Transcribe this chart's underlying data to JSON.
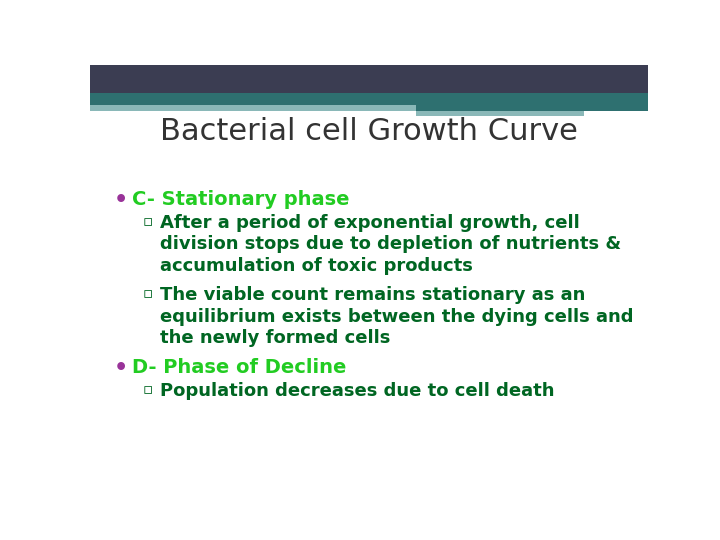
{
  "title": "Bacterial cell Growth Curve",
  "title_color": "#333333",
  "title_fontsize": 22,
  "title_fontweight": "normal",
  "background_color": "#ffffff",
  "header_navy_color": "#3b3d52",
  "header_teal_color": "#2e7070",
  "header_light_teal_color": "#8ab8b8",
  "bullet_dot_color": "#993399",
  "bullet_main_color": "#22cc22",
  "sub_bullet_color": "#006622",
  "bullet_fontsize": 14,
  "sub_bullet_fontsize": 13,
  "bullets": [
    {
      "text": "C- Stationary phase",
      "color": "#22cc22",
      "bold": true,
      "level": 0
    },
    {
      "lines": [
        "After a period of exponential growth, cell",
        "division stops due to depletion of nutrients &",
        "accumulation of toxic products"
      ],
      "color": "#006622",
      "bold": true,
      "level": 1
    },
    {
      "lines": [
        "The viable count remains stationary as an",
        "equilibrium exists between the dying cells and",
        "the newly formed cells"
      ],
      "color": "#006622",
      "bold": true,
      "level": 1
    },
    {
      "text": "D- Phase of Decline",
      "color": "#22cc22",
      "bold": true,
      "level": 0
    },
    {
      "lines": [
        "Population decreases due to cell death"
      ],
      "color": "#006622",
      "bold": true,
      "level": 1
    }
  ]
}
